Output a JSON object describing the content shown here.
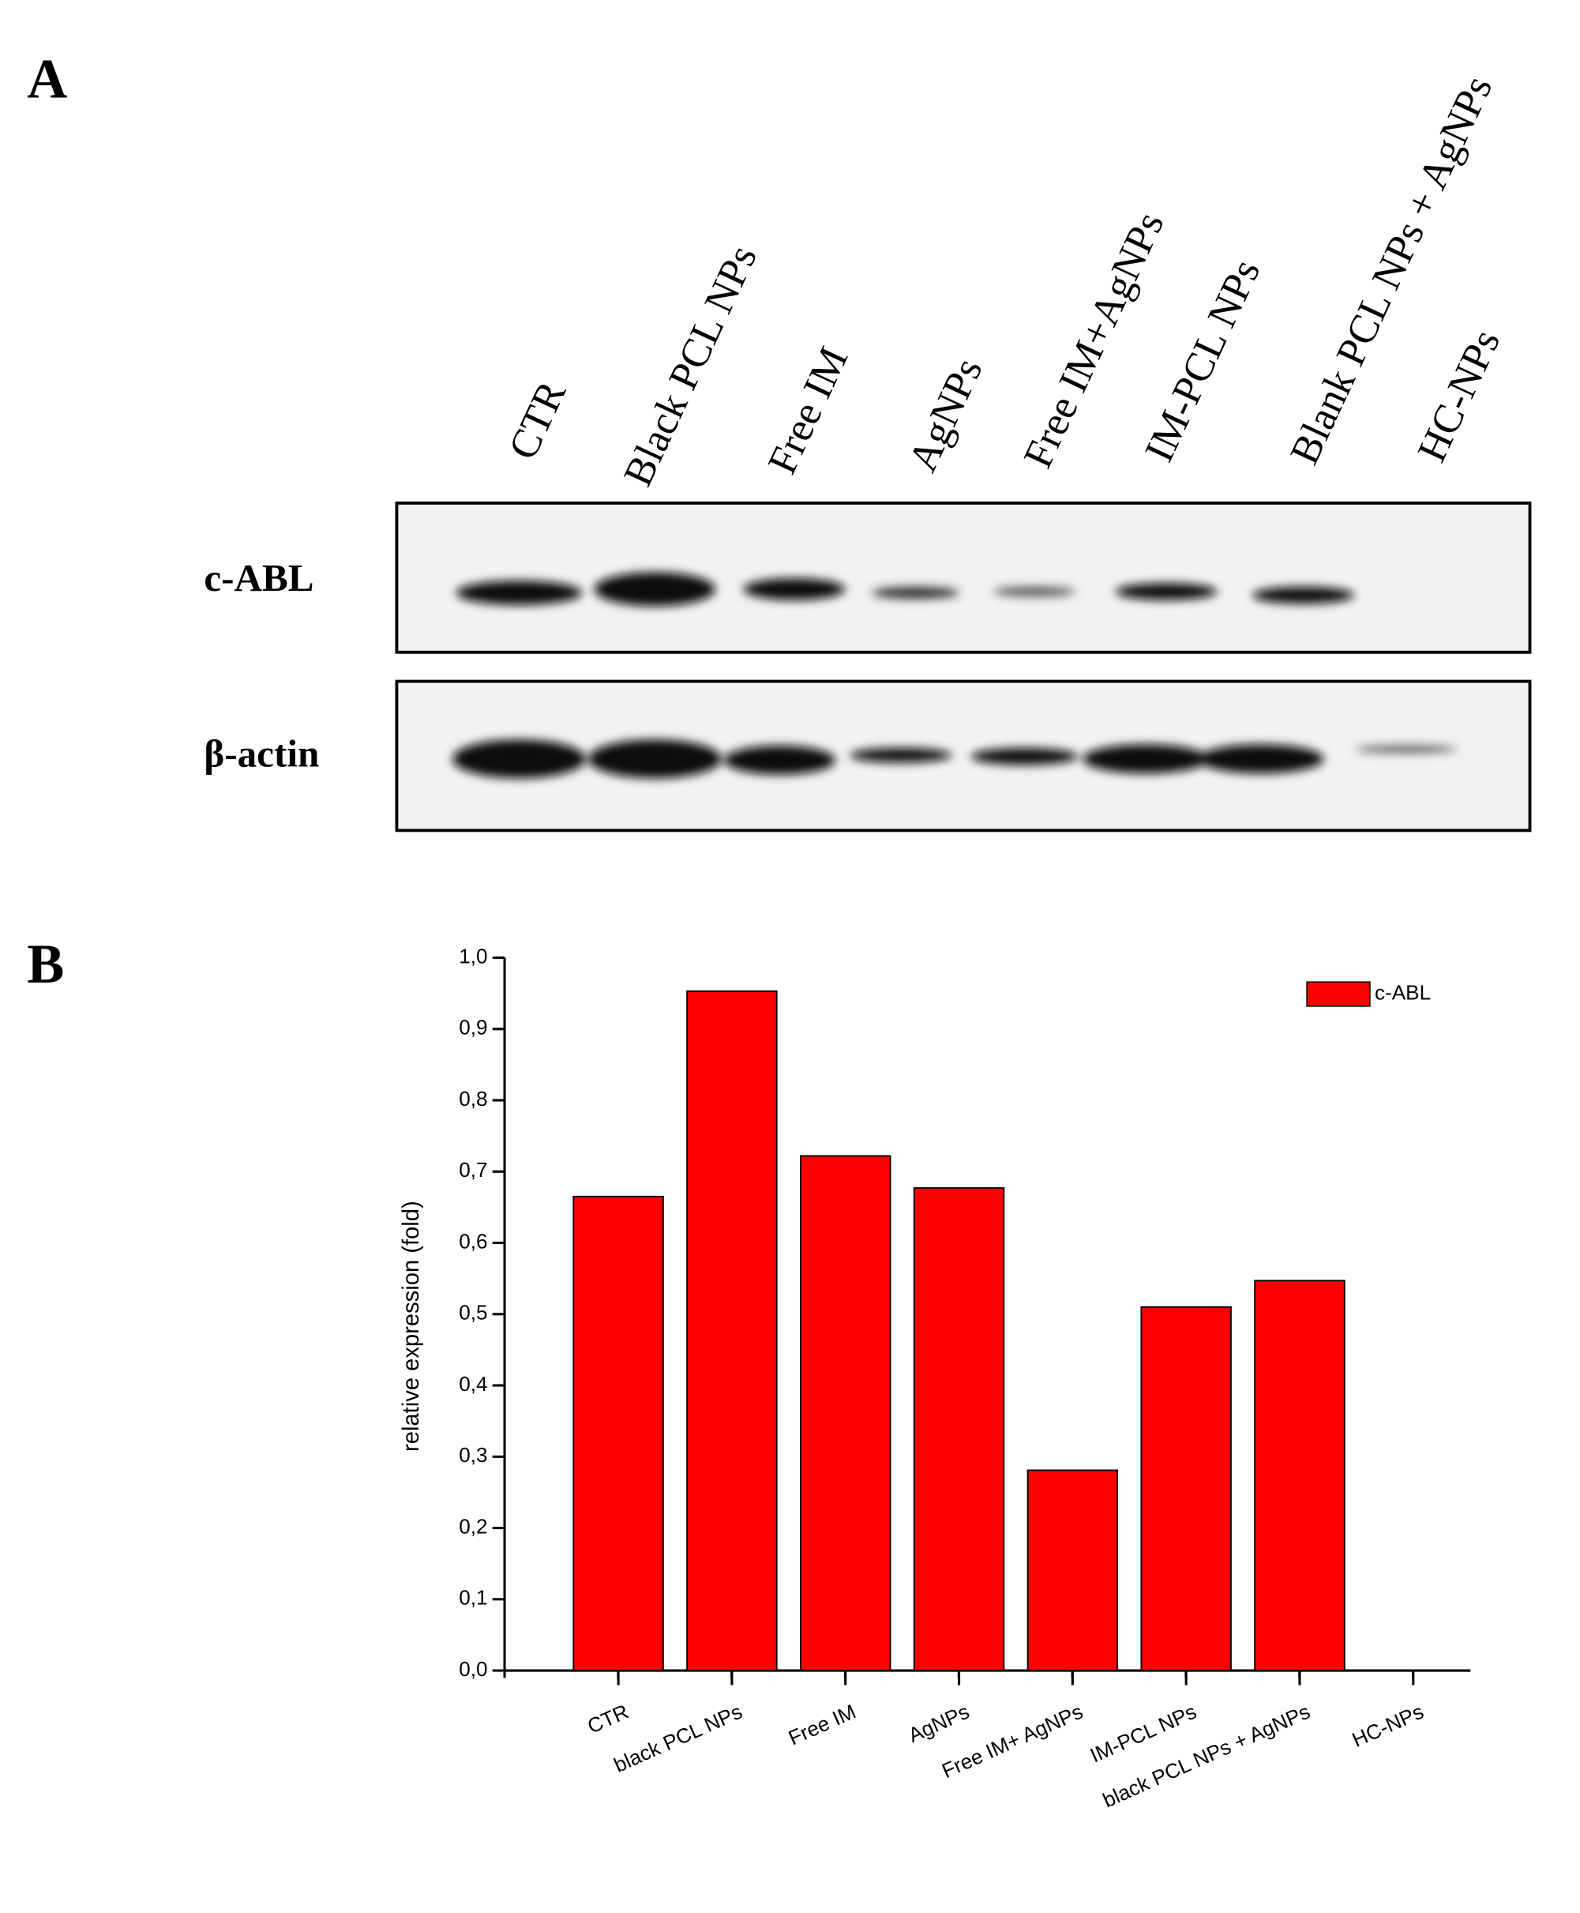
{
  "panel_a": {
    "label": "A",
    "lanes": [
      "CTR",
      "Black PCL NPs",
      "Free IM",
      "AgNPs",
      "Free IM+AgNPs",
      "IM-PCL NPs",
      "Blank PCL NPs + AgNPs",
      "HC-NPs"
    ],
    "blots": [
      "c-ABL",
      "β-actin"
    ]
  },
  "panel_b_label": "B",
  "chart_data": {
    "type": "bar",
    "y_label": "relative expression (fold)",
    "categories": [
      "CTR",
      "black PCL NPs",
      "Free IM",
      "AgNPs",
      "Free IM+ AgNPs",
      "IM-PCL NPs",
      "black PCL NPs + AgNPs",
      "HC-NPs"
    ],
    "series": [
      {
        "name": "c-ABL",
        "color": "#ff0000",
        "values": [
          0.665,
          0.953,
          0.722,
          0.677,
          0.281,
          0.51,
          0.547,
          0
        ]
      }
    ],
    "ylim": [
      0,
      1
    ],
    "yticks": [
      {
        "value": 0,
        "label": "0,0"
      },
      {
        "value": 0.1,
        "label": "0,1"
      },
      {
        "value": 0.2,
        "label": "0,2"
      },
      {
        "value": 0.3,
        "label": "0,3"
      },
      {
        "value": 0.4,
        "label": "0,4"
      },
      {
        "value": 0.5,
        "label": "0,5"
      },
      {
        "value": 0.6,
        "label": "0,6"
      },
      {
        "value": 0.7,
        "label": "0,7"
      },
      {
        "value": 0.8,
        "label": "0,8"
      },
      {
        "value": 0.9,
        "label": "0,9"
      },
      {
        "value": 1,
        "label": "1,0"
      }
    ],
    "legend": "top-right"
  }
}
